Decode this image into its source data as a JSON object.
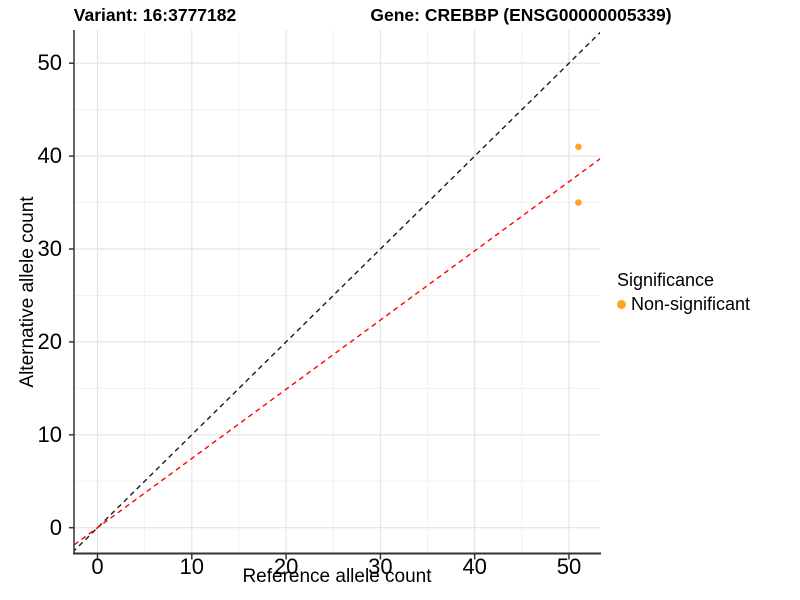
{
  "chart_data": {
    "type": "scatter",
    "title_left": "Variant: 16:3777182",
    "title_right": "Gene: CREBBP (ENSG00000005339)",
    "xlabel": "Reference allele count",
    "ylabel": "Alternative allele count",
    "x_ticks": [
      0,
      10,
      20,
      30,
      40,
      50
    ],
    "y_ticks": [
      0,
      10,
      20,
      30,
      40,
      50
    ],
    "xlim": [
      -2.5,
      53.3
    ],
    "ylim": [
      -2.7,
      53.6
    ],
    "grid": {
      "major": true,
      "minor": true,
      "minor_interval": 5
    },
    "points": [
      {
        "x": 51,
        "y": 41,
        "series": "Non-significant"
      },
      {
        "x": 51,
        "y": 35,
        "series": "Non-significant"
      }
    ],
    "point_color": "#FFA520",
    "point_radius": 3.3,
    "lines": [
      {
        "name": "identity-line",
        "slope": 1,
        "intercept": 0,
        "color": "#1A1A1A",
        "dash": "dashed"
      },
      {
        "name": "ratio-line",
        "slope": 0.745,
        "intercept": 0,
        "color": "#FF0000",
        "dash": "dashed"
      }
    ],
    "legend": {
      "title": "Significance",
      "position": "right",
      "items": [
        {
          "label": "Non-significant",
          "color": "#FFA520"
        }
      ]
    },
    "colors": {
      "grid_major": "#E4E4E4",
      "grid_minor": "#F1F1F1",
      "axis_line": "#333333",
      "text": "#000000"
    }
  }
}
